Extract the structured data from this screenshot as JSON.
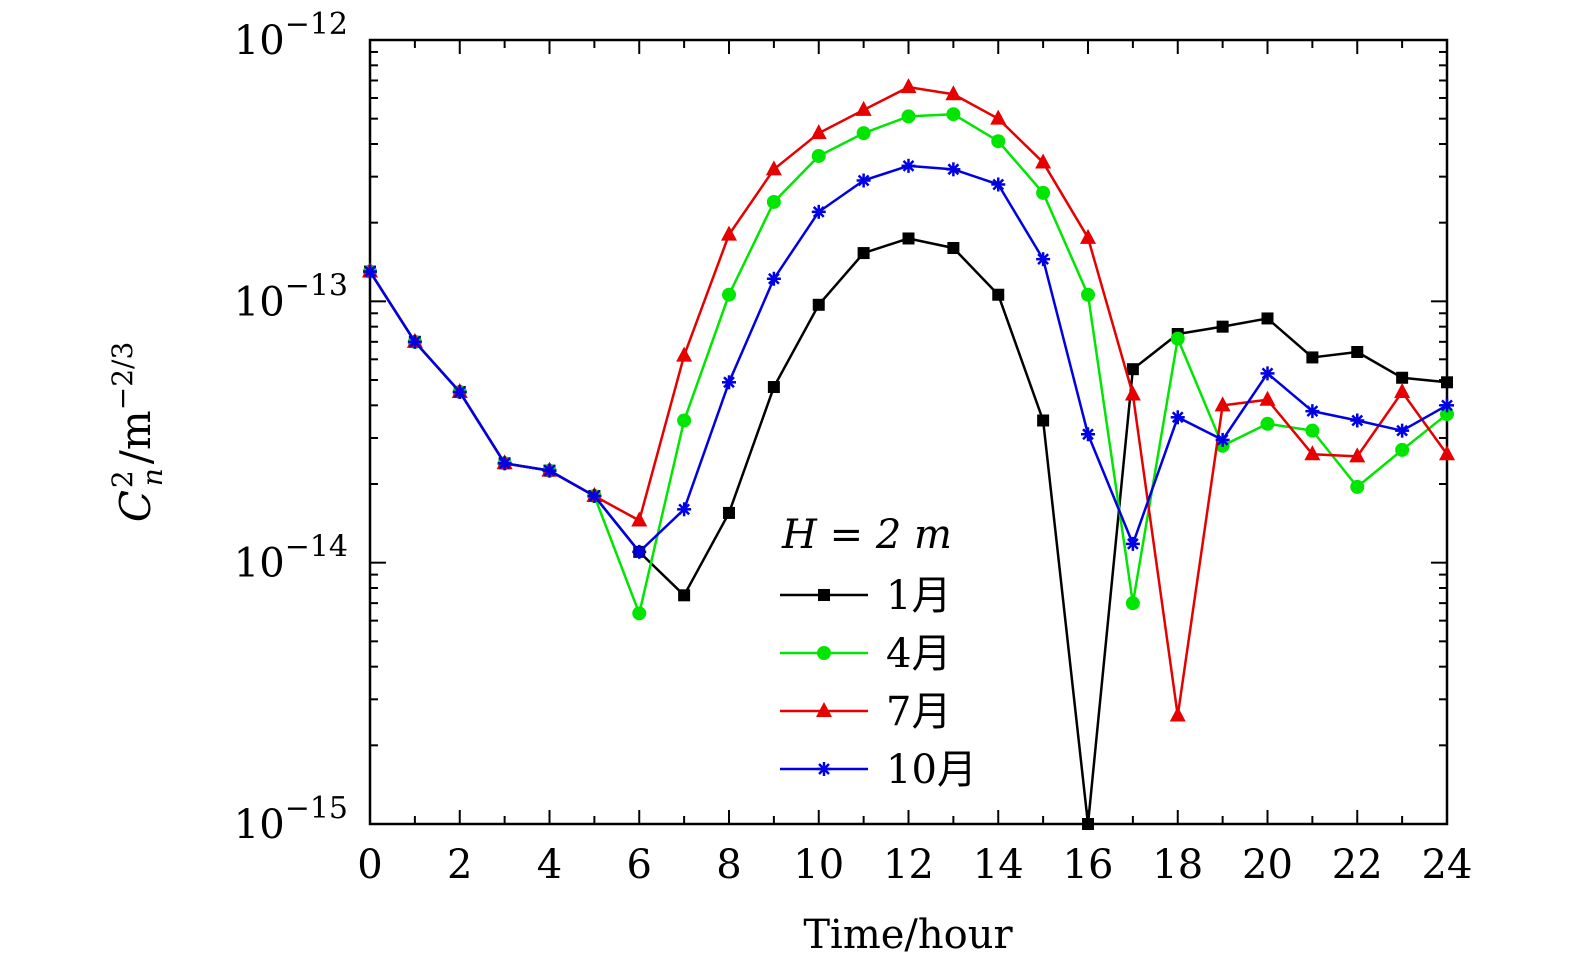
{
  "chart_data": {
    "type": "line",
    "xlabel": "Time/hour",
    "ylabel": {
      "main": "C",
      "sup": "2",
      "sub": "n",
      "unit": "/m",
      "unit_sup": "−2/3"
    },
    "xlim": [
      0,
      24
    ],
    "ylim": [
      1e-15,
      1e-12
    ],
    "yscale": "log",
    "x_ticks": [
      0,
      2,
      4,
      6,
      8,
      10,
      12,
      14,
      16,
      18,
      20,
      22,
      24
    ],
    "x_tick_labels": [
      "0",
      "2",
      "4",
      "6",
      "8",
      "10",
      "12",
      "14",
      "16",
      "18",
      "20",
      "22",
      "24"
    ],
    "y_ticks": [
      {
        "value": 1e-12,
        "base": "10",
        "exp": "−12"
      },
      {
        "value": 1e-13,
        "base": "10",
        "exp": "−13"
      },
      {
        "value": 1e-14,
        "base": "10",
        "exp": "−14"
      },
      {
        "value": 1e-15,
        "base": "10",
        "exp": "−15"
      }
    ],
    "grid": false,
    "legend": {
      "title": "H = 2 m",
      "placement": "bottom-center"
    },
    "x": [
      0,
      1,
      2,
      3,
      4,
      5,
      6,
      7,
      8,
      9,
      10,
      11,
      12,
      13,
      14,
      15,
      16,
      17,
      18,
      19,
      20,
      21,
      22,
      23,
      24
    ],
    "series": [
      {
        "name": "1月",
        "color": "#000000",
        "marker": "square",
        "values": [
          1.3e-13,
          7e-14,
          4.5e-14,
          2.4e-14,
          2.25e-14,
          1.8e-14,
          1.1e-14,
          7.5e-15,
          1.55e-14,
          4.7e-14,
          9.7e-14,
          1.53e-13,
          1.74e-13,
          1.6e-13,
          1.06e-13,
          3.5e-14,
          1e-15,
          5.5e-14,
          7.5e-14,
          8e-14,
          8.6e-14,
          6.1e-14,
          6.4e-14,
          5.1e-14,
          4.9e-14
        ]
      },
      {
        "name": "4月",
        "color": "#00e600",
        "marker": "circle",
        "values": [
          1.3e-13,
          7e-14,
          4.5e-14,
          2.4e-14,
          2.25e-14,
          1.8e-14,
          6.4e-15,
          3.5e-14,
          1.06e-13,
          2.4e-13,
          3.6e-13,
          4.4e-13,
          5.1e-13,
          5.2e-13,
          4.1e-13,
          2.6e-13,
          1.06e-13,
          7e-15,
          7.2e-14,
          2.8e-14,
          3.4e-14,
          3.2e-14,
          1.95e-14,
          2.7e-14,
          3.7e-14
        ]
      },
      {
        "name": "7月",
        "color": "#e60000",
        "marker": "triangle",
        "values": [
          1.3e-13,
          7e-14,
          4.5e-14,
          2.4e-14,
          2.25e-14,
          1.8e-14,
          1.45e-14,
          6.2e-14,
          1.8e-13,
          3.2e-13,
          4.4e-13,
          5.4e-13,
          6.6e-13,
          6.2e-13,
          5e-13,
          3.4e-13,
          1.75e-13,
          4.4e-14,
          2.6e-15,
          4e-14,
          4.2e-14,
          2.6e-14,
          2.55e-14,
          4.5e-14,
          2.6e-14
        ]
      },
      {
        "name": "10月",
        "color": "#0000e6",
        "marker": "asterisk",
        "values": [
          1.3e-13,
          7e-14,
          4.5e-14,
          2.4e-14,
          2.25e-14,
          1.8e-14,
          1.1e-14,
          1.6e-14,
          4.9e-14,
          1.22e-13,
          2.2e-13,
          2.9e-13,
          3.3e-13,
          3.2e-13,
          2.8e-13,
          1.45e-13,
          3.1e-14,
          1.18e-14,
          3.6e-14,
          2.95e-14,
          5.3e-14,
          3.8e-14,
          3.5e-14,
          3.2e-14,
          4e-14
        ]
      }
    ]
  }
}
